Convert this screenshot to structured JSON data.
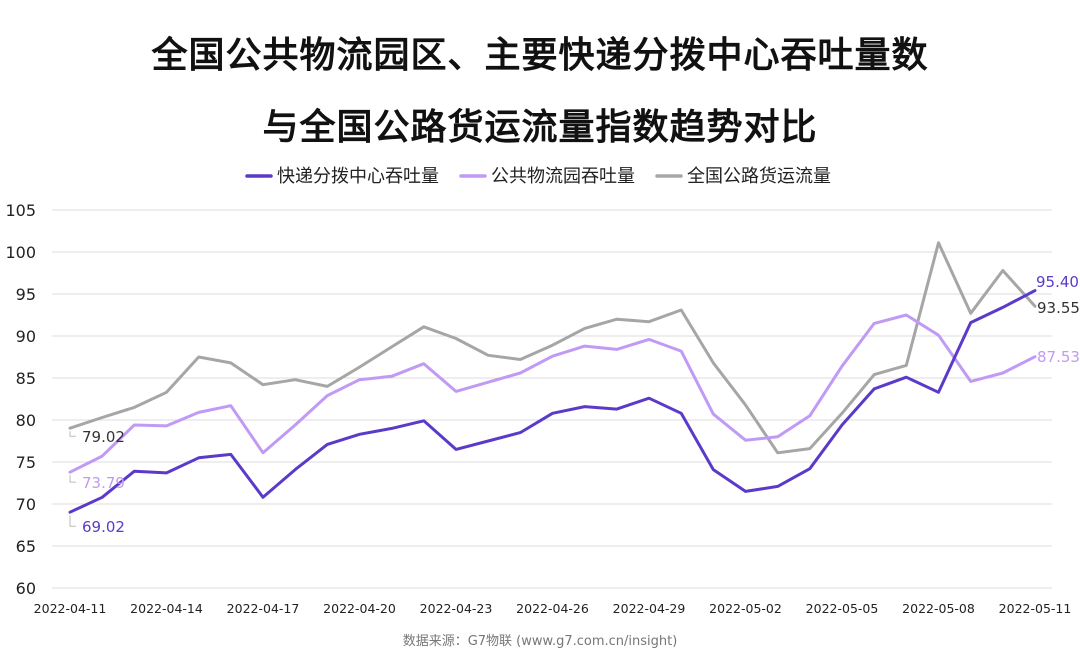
{
  "title_line1": "全国公共物流园区、主要快递分拨中心吞吐量数",
  "title_line2": "与全国公路货运流量指数趋势对比",
  "source": "数据来源：G7物联 (www.g7.com.cn/insight)",
  "chart_data": {
    "type": "line",
    "x": [
      "2022-04-11",
      "2022-04-12",
      "2022-04-13",
      "2022-04-14",
      "2022-04-15",
      "2022-04-16",
      "2022-04-17",
      "2022-04-18",
      "2022-04-19",
      "2022-04-20",
      "2022-04-21",
      "2022-04-22",
      "2022-04-23",
      "2022-04-24",
      "2022-04-25",
      "2022-04-26",
      "2022-04-27",
      "2022-04-28",
      "2022-04-29",
      "2022-04-30",
      "2022-05-01",
      "2022-05-02",
      "2022-05-03",
      "2022-05-04",
      "2022-05-05",
      "2022-05-06",
      "2022-05-07",
      "2022-05-08",
      "2022-05-09",
      "2022-05-10",
      "2022-05-11"
    ],
    "xticks": [
      "2022-04-11",
      "2022-04-14",
      "2022-04-17",
      "2022-04-20",
      "2022-04-23",
      "2022-04-26",
      "2022-04-29",
      "2022-05-02",
      "2022-05-05",
      "2022-05-08",
      "2022-05-11"
    ],
    "ylim": [
      60,
      105
    ],
    "yticks": [
      60,
      65,
      70,
      75,
      80,
      85,
      90,
      95,
      100,
      105
    ],
    "grid": true,
    "legend_position": "top-center",
    "series": [
      {
        "name": "快递分拨中心吞吐量",
        "color": "#5b3ac9",
        "values": [
          69.02,
          70.8,
          73.9,
          73.7,
          75.5,
          75.9,
          70.8,
          74.1,
          77.1,
          78.3,
          79.0,
          79.9,
          76.5,
          77.5,
          78.5,
          80.8,
          81.6,
          81.3,
          82.6,
          80.8,
          74.1,
          71.5,
          72.1,
          74.2,
          79.4,
          83.7,
          85.1,
          83.3,
          91.6,
          93.4,
          95.4
        ],
        "start_label": "69.02",
        "end_label": "95.40"
      },
      {
        "name": "公共物流园吞吐量",
        "color": "#c09af4",
        "values": [
          73.79,
          75.7,
          79.4,
          79.3,
          80.9,
          81.7,
          76.1,
          79.4,
          82.9,
          84.8,
          85.2,
          86.7,
          83.4,
          84.5,
          85.6,
          87.6,
          88.8,
          88.4,
          89.6,
          88.2,
          80.7,
          77.6,
          78.0,
          80.5,
          86.4,
          91.5,
          92.5,
          90.1,
          84.6,
          85.6,
          87.53
        ],
        "start_label": "73.79",
        "end_label": "87.53"
      },
      {
        "name": "全国公路货运流量",
        "color": "#a6a6a6",
        "values": [
          79.02,
          80.3,
          81.5,
          83.3,
          87.5,
          86.8,
          84.2,
          84.8,
          84.0,
          86.3,
          88.7,
          91.1,
          89.7,
          87.7,
          87.2,
          88.9,
          90.9,
          92.0,
          91.7,
          93.1,
          86.8,
          81.8,
          76.1,
          76.6,
          80.8,
          85.4,
          86.5,
          101.1,
          92.7,
          97.8,
          93.55
        ],
        "start_label": "79.02",
        "end_label": "93.55"
      }
    ]
  }
}
